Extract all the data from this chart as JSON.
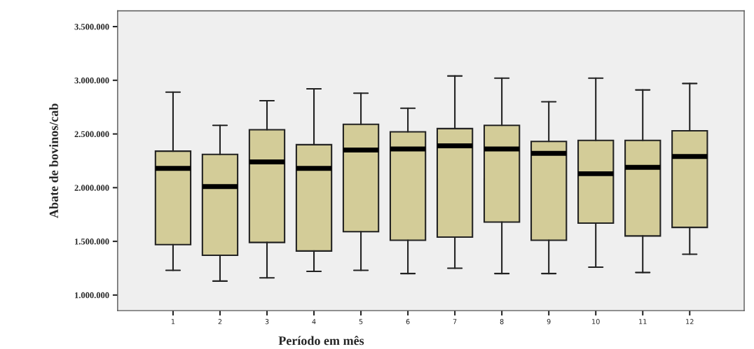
{
  "chart_data": {
    "type": "box",
    "xlabel": "Período em mês",
    "ylabel": "Abate de bovinos/cab",
    "categories": [
      "1",
      "2",
      "3",
      "4",
      "5",
      "6",
      "7",
      "8",
      "9",
      "10",
      "11",
      "12"
    ],
    "color": "#d3cc98",
    "boxes": [
      {
        "low": 1230000,
        "q1": 1470000,
        "median": 2180000,
        "q3": 2340000,
        "high": 2890000
      },
      {
        "low": 1130000,
        "q1": 1370000,
        "median": 2010000,
        "q3": 2310000,
        "high": 2580000
      },
      {
        "low": 1160000,
        "q1": 1490000,
        "median": 2240000,
        "q3": 2540000,
        "high": 2810000
      },
      {
        "low": 1220000,
        "q1": 1410000,
        "median": 2180000,
        "q3": 2400000,
        "high": 2920000
      },
      {
        "low": 1230000,
        "q1": 1590000,
        "median": 2350000,
        "q3": 2590000,
        "high": 2880000
      },
      {
        "low": 1200000,
        "q1": 1510000,
        "median": 2360000,
        "q3": 2520000,
        "high": 2740000
      },
      {
        "low": 1250000,
        "q1": 1540000,
        "median": 2390000,
        "q3": 2550000,
        "high": 3040000
      },
      {
        "low": 1200000,
        "q1": 1680000,
        "median": 2360000,
        "q3": 2580000,
        "high": 3020000
      },
      {
        "low": 1200000,
        "q1": 1510000,
        "median": 2320000,
        "q3": 2430000,
        "high": 2800000
      },
      {
        "low": 1260000,
        "q1": 1670000,
        "median": 2130000,
        "q3": 2440000,
        "high": 3020000
      },
      {
        "low": 1210000,
        "q1": 1550000,
        "median": 2190000,
        "q3": 2440000,
        "high": 2910000
      },
      {
        "low": 1380000,
        "q1": 1630000,
        "median": 2290000,
        "q3": 2530000,
        "high": 2970000
      }
    ],
    "ylim": [
      855000,
      3647000
    ],
    "yticks": [
      {
        "value": 1000000,
        "label": "1.000.000"
      },
      {
        "value": 1500000,
        "label": "1.500.000"
      },
      {
        "value": 2000000,
        "label": "2.000.000"
      },
      {
        "value": 2500000,
        "label": "2.500.000"
      },
      {
        "value": 3000000,
        "label": "3.000.000"
      },
      {
        "value": 3500000,
        "label": "3.500.000"
      }
    ],
    "grid": false
  }
}
